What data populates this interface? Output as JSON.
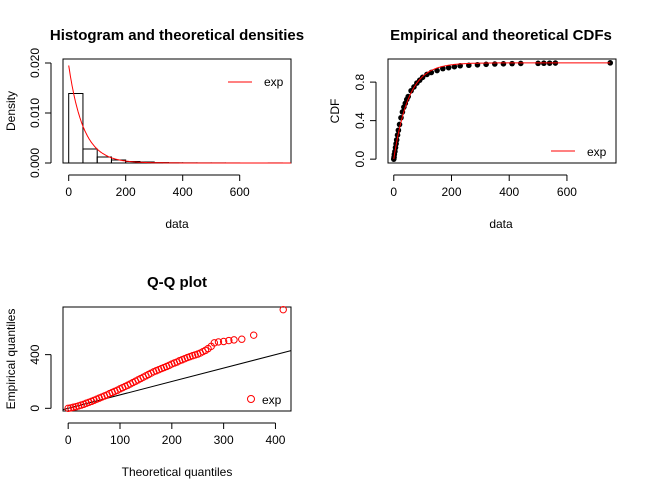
{
  "chart_data": [
    {
      "type": "bar",
      "panel": "histogram",
      "title": "Histogram and theoretical densities",
      "xlabel": "data",
      "ylabel": "Density",
      "xlim": [
        -20,
        780
      ],
      "ylim": [
        0,
        0.0208
      ],
      "xticks": [
        0,
        200,
        400,
        600
      ],
      "yticks": [
        0.0,
        0.01,
        0.02
      ],
      "ytick_labels": [
        "0.000",
        "0.010",
        "0.020"
      ],
      "bins": [
        {
          "x0": 0,
          "x1": 50,
          "density": 0.0139
        },
        {
          "x0": 50,
          "x1": 100,
          "density": 0.0028
        },
        {
          "x0": 100,
          "x1": 150,
          "density": 0.0012
        },
        {
          "x0": 150,
          "x1": 200,
          "density": 0.0006
        },
        {
          "x0": 200,
          "x1": 250,
          "density": 0.0003
        },
        {
          "x0": 250,
          "x1": 300,
          "density": 0.0002
        },
        {
          "x0": 300,
          "x1": 350,
          "density": 8e-05
        },
        {
          "x0": 350,
          "x1": 400,
          "density": 4e-05
        },
        {
          "x0": 400,
          "x1": 450,
          "density": 3e-05
        },
        {
          "x0": 450,
          "x1": 500,
          "density": 2e-05
        },
        {
          "x0": 500,
          "x1": 550,
          "density": 2e-05
        },
        {
          "x0": 550,
          "x1": 600,
          "density": 1e-05
        },
        {
          "x0": 600,
          "x1": 650,
          "density": 0.0
        },
        {
          "x0": 650,
          "x1": 700,
          "density": 0.0
        },
        {
          "x0": 700,
          "x1": 750,
          "density": 1e-05
        }
      ],
      "density_curve": {
        "name": "exp",
        "rate": 0.0195,
        "color": "#ff0000"
      },
      "legend": [
        "exp"
      ],
      "legend_position": "top-right"
    },
    {
      "type": "line",
      "panel": "cdf",
      "title": "Empirical and theoretical CDFs",
      "xlabel": "data",
      "ylabel": "CDF",
      "xlim": [
        -20,
        770
      ],
      "ylim": [
        -0.04,
        1.04
      ],
      "xticks": [
        0,
        200,
        400,
        600
      ],
      "yticks": [
        0.0,
        0.4,
        0.8
      ],
      "ytick_labels": [
        "0.0",
        "0.4",
        "0.8"
      ],
      "theoretical": {
        "name": "exp",
        "rate": 0.0195,
        "color": "#ff0000"
      },
      "empirical_points": [
        {
          "x": 0,
          "y": 0.0
        },
        {
          "x": 1,
          "y": 0.02
        },
        {
          "x": 2,
          "y": 0.05
        },
        {
          "x": 4,
          "y": 0.08
        },
        {
          "x": 6,
          "y": 0.12
        },
        {
          "x": 8,
          "y": 0.16
        },
        {
          "x": 10,
          "y": 0.2
        },
        {
          "x": 13,
          "y": 0.25
        },
        {
          "x": 16,
          "y": 0.3
        },
        {
          "x": 20,
          "y": 0.36
        },
        {
          "x": 25,
          "y": 0.43
        },
        {
          "x": 30,
          "y": 0.49
        },
        {
          "x": 35,
          "y": 0.54
        },
        {
          "x": 40,
          "y": 0.58
        },
        {
          "x": 45,
          "y": 0.62
        },
        {
          "x": 50,
          "y": 0.65
        },
        {
          "x": 60,
          "y": 0.71
        },
        {
          "x": 70,
          "y": 0.75
        },
        {
          "x": 80,
          "y": 0.79
        },
        {
          "x": 90,
          "y": 0.82
        },
        {
          "x": 100,
          "y": 0.85
        },
        {
          "x": 115,
          "y": 0.88
        },
        {
          "x": 130,
          "y": 0.9
        },
        {
          "x": 150,
          "y": 0.92
        },
        {
          "x": 170,
          "y": 0.94
        },
        {
          "x": 190,
          "y": 0.95
        },
        {
          "x": 210,
          "y": 0.96
        },
        {
          "x": 230,
          "y": 0.97
        },
        {
          "x": 260,
          "y": 0.975
        },
        {
          "x": 290,
          "y": 0.98
        },
        {
          "x": 320,
          "y": 0.985
        },
        {
          "x": 350,
          "y": 0.988
        },
        {
          "x": 380,
          "y": 0.99
        },
        {
          "x": 410,
          "y": 0.992
        },
        {
          "x": 440,
          "y": 0.994
        },
        {
          "x": 500,
          "y": 0.995
        },
        {
          "x": 520,
          "y": 0.996
        },
        {
          "x": 540,
          "y": 0.997
        },
        {
          "x": 560,
          "y": 0.998
        },
        {
          "x": 750,
          "y": 1.0
        }
      ],
      "legend": [
        "exp"
      ],
      "legend_position": "bottom-right"
    },
    {
      "type": "scatter",
      "panel": "qq",
      "title": "Q-Q plot",
      "xlabel": "Theoretical quantiles",
      "ylabel": "Empirical quantiles",
      "xlim": [
        -10,
        430
      ],
      "ylim": [
        -20,
        755
      ],
      "xticks": [
        0,
        100,
        200,
        300,
        400
      ],
      "yticks": [
        0,
        400
      ],
      "ytick_labels": [
        "0",
        "400"
      ],
      "reference_line": {
        "slope": 1,
        "intercept": 0
      },
      "points": [
        {
          "x": 0,
          "y": 0
        },
        {
          "x": 5,
          "y": 3
        },
        {
          "x": 10,
          "y": 8
        },
        {
          "x": 15,
          "y": 12
        },
        {
          "x": 20,
          "y": 18
        },
        {
          "x": 25,
          "y": 24
        },
        {
          "x": 30,
          "y": 30
        },
        {
          "x": 35,
          "y": 38
        },
        {
          "x": 40,
          "y": 45
        },
        {
          "x": 45,
          "y": 52
        },
        {
          "x": 50,
          "y": 60
        },
        {
          "x": 55,
          "y": 68
        },
        {
          "x": 60,
          "y": 76
        },
        {
          "x": 65,
          "y": 84
        },
        {
          "x": 70,
          "y": 92
        },
        {
          "x": 75,
          "y": 100
        },
        {
          "x": 80,
          "y": 110
        },
        {
          "x": 85,
          "y": 118
        },
        {
          "x": 90,
          "y": 127
        },
        {
          "x": 95,
          "y": 135
        },
        {
          "x": 100,
          "y": 145
        },
        {
          "x": 105,
          "y": 154
        },
        {
          "x": 110,
          "y": 163
        },
        {
          "x": 115,
          "y": 172
        },
        {
          "x": 120,
          "y": 182
        },
        {
          "x": 125,
          "y": 192
        },
        {
          "x": 130,
          "y": 202
        },
        {
          "x": 135,
          "y": 212
        },
        {
          "x": 140,
          "y": 222
        },
        {
          "x": 145,
          "y": 232
        },
        {
          "x": 150,
          "y": 242
        },
        {
          "x": 155,
          "y": 252
        },
        {
          "x": 160,
          "y": 262
        },
        {
          "x": 165,
          "y": 272
        },
        {
          "x": 170,
          "y": 280
        },
        {
          "x": 175,
          "y": 288
        },
        {
          "x": 180,
          "y": 296
        },
        {
          "x": 185,
          "y": 304
        },
        {
          "x": 190,
          "y": 312
        },
        {
          "x": 195,
          "y": 320
        },
        {
          "x": 200,
          "y": 330
        },
        {
          "x": 205,
          "y": 338
        },
        {
          "x": 210,
          "y": 345
        },
        {
          "x": 215,
          "y": 355
        },
        {
          "x": 220,
          "y": 362
        },
        {
          "x": 225,
          "y": 370
        },
        {
          "x": 230,
          "y": 378
        },
        {
          "x": 235,
          "y": 385
        },
        {
          "x": 240,
          "y": 392
        },
        {
          "x": 245,
          "y": 398
        },
        {
          "x": 250,
          "y": 404
        },
        {
          "x": 255,
          "y": 412
        },
        {
          "x": 260,
          "y": 422
        },
        {
          "x": 265,
          "y": 432
        },
        {
          "x": 270,
          "y": 445
        },
        {
          "x": 276,
          "y": 462
        },
        {
          "x": 282,
          "y": 488
        },
        {
          "x": 290,
          "y": 495
        },
        {
          "x": 300,
          "y": 498
        },
        {
          "x": 310,
          "y": 505
        },
        {
          "x": 320,
          "y": 510
        },
        {
          "x": 335,
          "y": 515
        },
        {
          "x": 358,
          "y": 545
        },
        {
          "x": 415,
          "y": 735
        }
      ],
      "legend": [
        "exp"
      ],
      "legend_position": "bottom-right"
    }
  ]
}
